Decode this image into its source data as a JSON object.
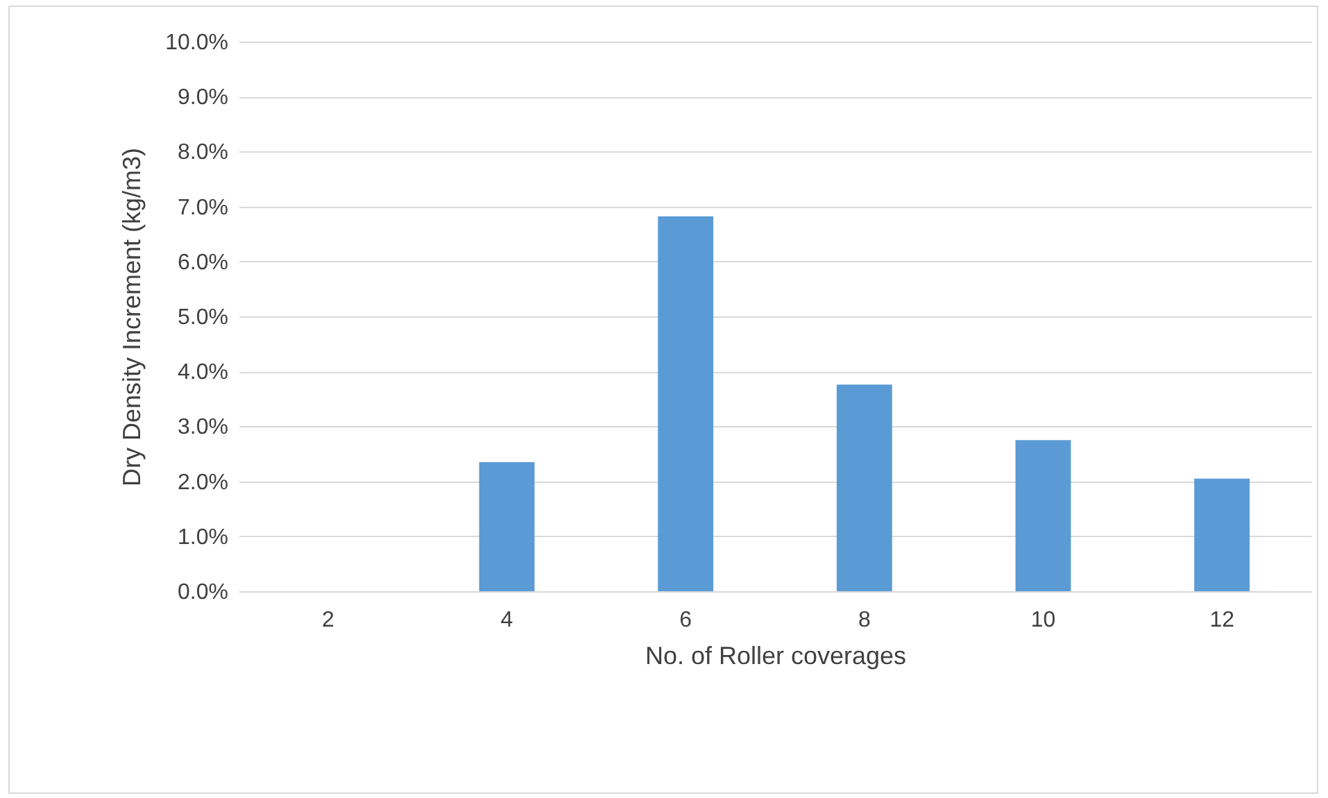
{
  "chart_data": {
    "type": "bar",
    "xlabel": "No. of Roller coverages",
    "ylabel": "Dry Density Increment (kg/m3)",
    "categories": [
      "2",
      "4",
      "6",
      "8",
      "10",
      "12"
    ],
    "values": [
      0,
      2.35,
      6.82,
      3.76,
      2.75,
      2.05
    ],
    "color": "#5b9bd5",
    "ylim": [
      0,
      10
    ],
    "yticks": [
      {
        "value": 0,
        "label": "0.0%"
      },
      {
        "value": 1,
        "label": "1.0%"
      },
      {
        "value": 2,
        "label": "2.0%"
      },
      {
        "value": 3,
        "label": "3.0%"
      },
      {
        "value": 4,
        "label": "4.0%"
      },
      {
        "value": 5,
        "label": "5.0%"
      },
      {
        "value": 6,
        "label": "6.0%"
      },
      {
        "value": 7,
        "label": "7.0%"
      },
      {
        "value": 8,
        "label": "8.0%"
      },
      {
        "value": 9,
        "label": "9.0%"
      },
      {
        "value": 10,
        "label": "10.0%"
      }
    ],
    "grid": "y"
  }
}
